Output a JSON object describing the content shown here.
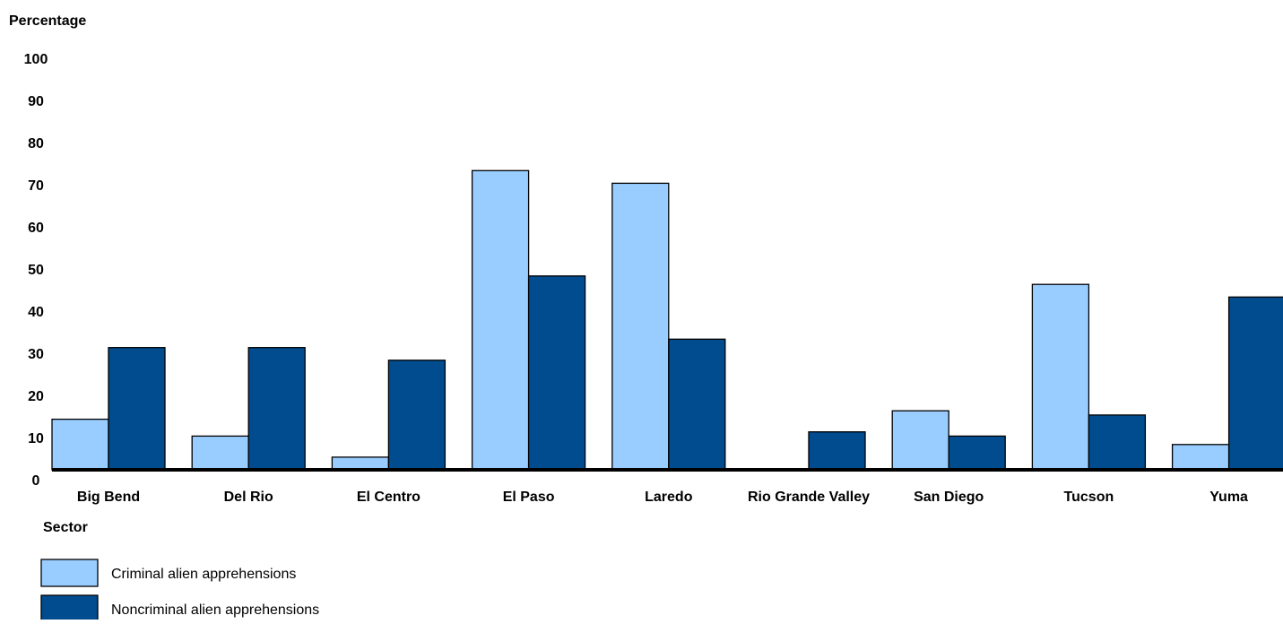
{
  "chart_data": {
    "type": "bar",
    "ylabel": "Percentage",
    "xlabel": "Sector",
    "ylim": [
      0,
      100
    ],
    "yticks": [
      0,
      10,
      20,
      30,
      40,
      50,
      60,
      70,
      80,
      90,
      100
    ],
    "grid": false,
    "legend_position": "bottom-left",
    "categories": [
      "Big Bend",
      "Del Rio",
      "El Centro",
      "El Paso",
      "Laredo",
      "Rio Grande Valley",
      "San Diego",
      "Tucson",
      "Yuma"
    ],
    "series": [
      {
        "name": "Criminal alien apprehensions",
        "color": "#99CCFF",
        "values": [
          12,
          8,
          3,
          71,
          68,
          0,
          14,
          44,
          6
        ]
      },
      {
        "name": "Noncriminal alien apprehensions",
        "color": "#004C8F",
        "values": [
          29,
          29,
          26,
          46,
          31,
          9,
          8,
          13,
          41
        ]
      }
    ]
  }
}
